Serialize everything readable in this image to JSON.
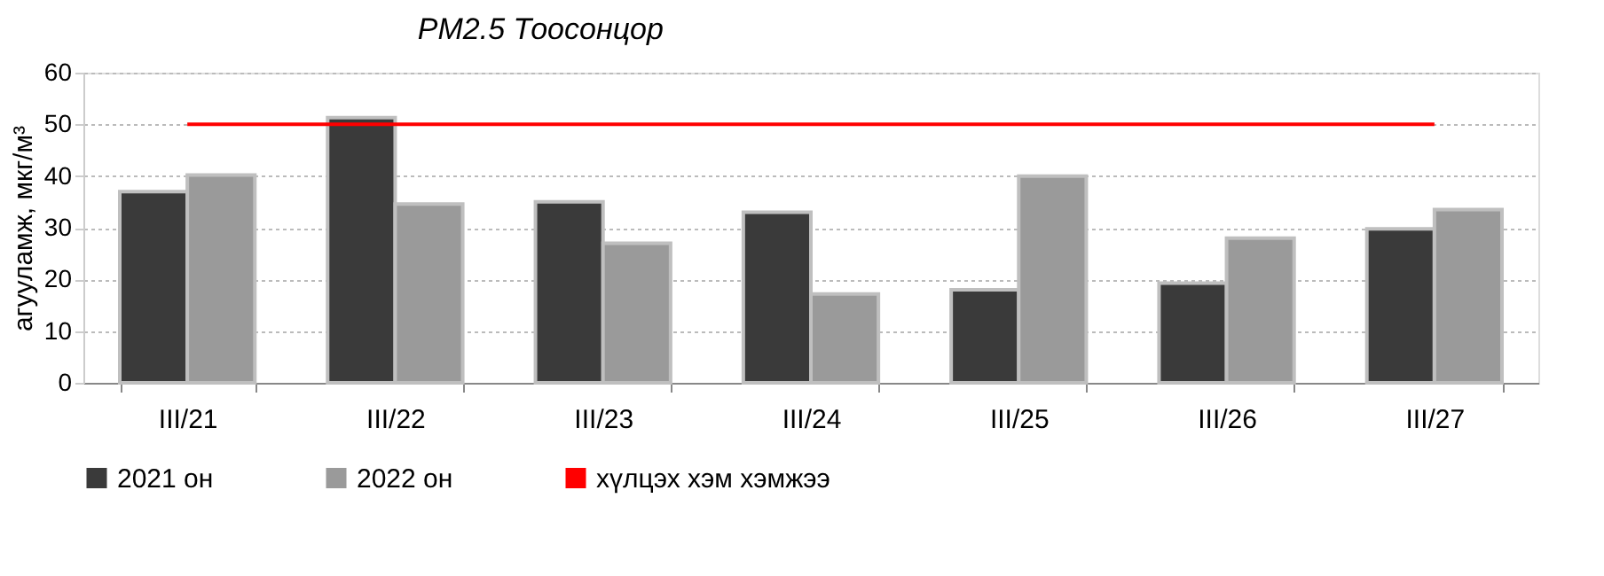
{
  "chart_data": {
    "type": "bar",
    "title": "PM2.5 Тоосонцор",
    "ylabel": "агууламж, мкг/м³",
    "categories": [
      "III/21",
      "III/22",
      "III/23",
      "III/24",
      "III/25",
      "III/26",
      "III/27"
    ],
    "series": [
      {
        "name": "2021 он",
        "color": "#3a3a3a",
        "values": [
          37,
          51.3,
          35,
          33,
          18,
          19.3,
          29.8
        ]
      },
      {
        "name": "2022 он",
        "color": "#9a9a9a",
        "values": [
          40.2,
          34.6,
          27,
          17.2,
          40,
          28,
          33.5
        ]
      },
      {
        "name": "хүлцэх хэм хэмжээ",
        "type": "line",
        "color": "#ff0000",
        "values": [
          50,
          50,
          50,
          50,
          50,
          50,
          50
        ]
      }
    ],
    "ylim": [
      0,
      60
    ],
    "yticks": [
      0,
      10,
      20,
      30,
      40,
      50,
      60
    ],
    "grid": "y",
    "legend": "bottom"
  }
}
